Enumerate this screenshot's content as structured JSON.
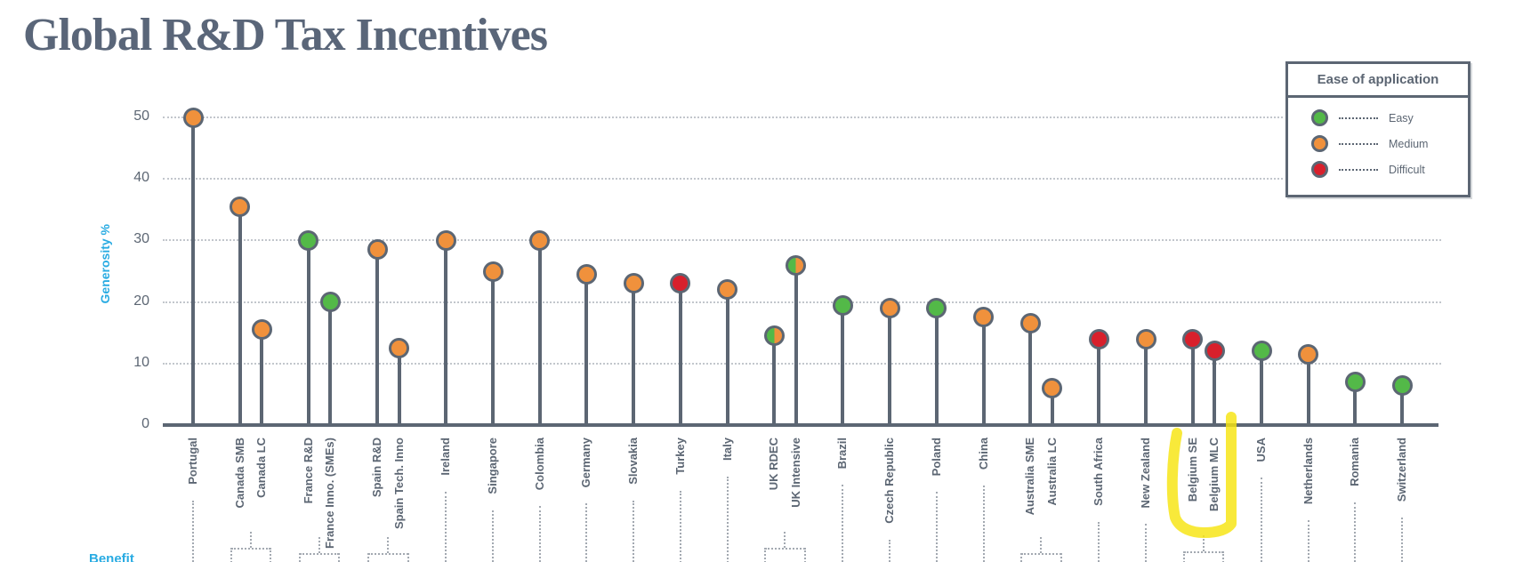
{
  "title": "Global R&D Tax Incentives",
  "legend": {
    "title": "Ease of application",
    "items": [
      {
        "label": "Easy",
        "color": "#53B948"
      },
      {
        "label": "Medium",
        "color": "#F0913C"
      },
      {
        "label": "Difficult",
        "color": "#D8202C"
      }
    ]
  },
  "bottom_partial_label": "Benefit",
  "chart_data": {
    "type": "lollipop",
    "title": "Global R&D Tax Incentives",
    "ylabel": "Generosity %",
    "ylim": [
      0,
      50
    ],
    "yticks": [
      0,
      10,
      20,
      30,
      40,
      50
    ],
    "grid": "horizontal-dotted",
    "legend_position": "top-right",
    "ease_colors": {
      "easy": "#53B948",
      "medium": "#F0913C",
      "difficult": "#D8202C"
    },
    "highlight": {
      "labels": [
        "Belgium SE",
        "Belgium MLC"
      ],
      "color": "#F6E40F",
      "style": "hand-drawn marker around x labels"
    },
    "points": [
      {
        "label": "Portugal",
        "value": 50,
        "ease": "medium"
      },
      {
        "label": "Canada SMB",
        "value": 35.5,
        "ease": "medium"
      },
      {
        "label": "Canada LC",
        "value": 15.5,
        "ease": "medium",
        "paired_with_previous": true
      },
      {
        "label": "France R&D",
        "value": 30,
        "ease": "easy"
      },
      {
        "label": "France Inno. (SMEs)",
        "value": 20,
        "ease": "easy",
        "paired_with_previous": true
      },
      {
        "label": "Spain R&D",
        "value": 28.5,
        "ease": "medium"
      },
      {
        "label": "Spain Tech. Inno",
        "value": 12.5,
        "ease": "medium",
        "paired_with_previous": true
      },
      {
        "label": "Ireland",
        "value": 30,
        "ease": "medium"
      },
      {
        "label": "Singapore",
        "value": 25,
        "ease": "medium"
      },
      {
        "label": "Colombia",
        "value": 30,
        "ease": "medium"
      },
      {
        "label": "Germany",
        "value": 24.5,
        "ease": "medium"
      },
      {
        "label": "Slovakia",
        "value": 23,
        "ease": "medium"
      },
      {
        "label": "Turkey",
        "value": 23,
        "ease": "difficult"
      },
      {
        "label": "Italy",
        "value": 22,
        "ease": "medium"
      },
      {
        "label": "UK RDEC",
        "value": 14.5,
        "ease": "mixed"
      },
      {
        "label": "UK Intensive",
        "value": 26,
        "ease": "mixed",
        "paired_with_previous": true
      },
      {
        "label": "Brazil",
        "value": 19.5,
        "ease": "easy"
      },
      {
        "label": "Czech Republic",
        "value": 19,
        "ease": "medium"
      },
      {
        "label": "Poland",
        "value": 19,
        "ease": "easy"
      },
      {
        "label": "China",
        "value": 17.5,
        "ease": "medium"
      },
      {
        "label": "Australia SME",
        "value": 16.5,
        "ease": "medium"
      },
      {
        "label": "Australia LC",
        "value": 6,
        "ease": "medium",
        "paired_with_previous": true
      },
      {
        "label": "South Africa",
        "value": 14,
        "ease": "difficult"
      },
      {
        "label": "New Zealand",
        "value": 14,
        "ease": "medium"
      },
      {
        "label": "Belgium SE",
        "value": 14,
        "ease": "difficult"
      },
      {
        "label": "Belgium MLC",
        "value": 12,
        "ease": "difficult",
        "paired_with_previous": true
      },
      {
        "label": "USA",
        "value": 12,
        "ease": "easy"
      },
      {
        "label": "Netherlands",
        "value": 11.5,
        "ease": "medium"
      },
      {
        "label": "Romania",
        "value": 7,
        "ease": "easy"
      },
      {
        "label": "Switzerland",
        "value": 6.5,
        "ease": "easy"
      }
    ]
  }
}
